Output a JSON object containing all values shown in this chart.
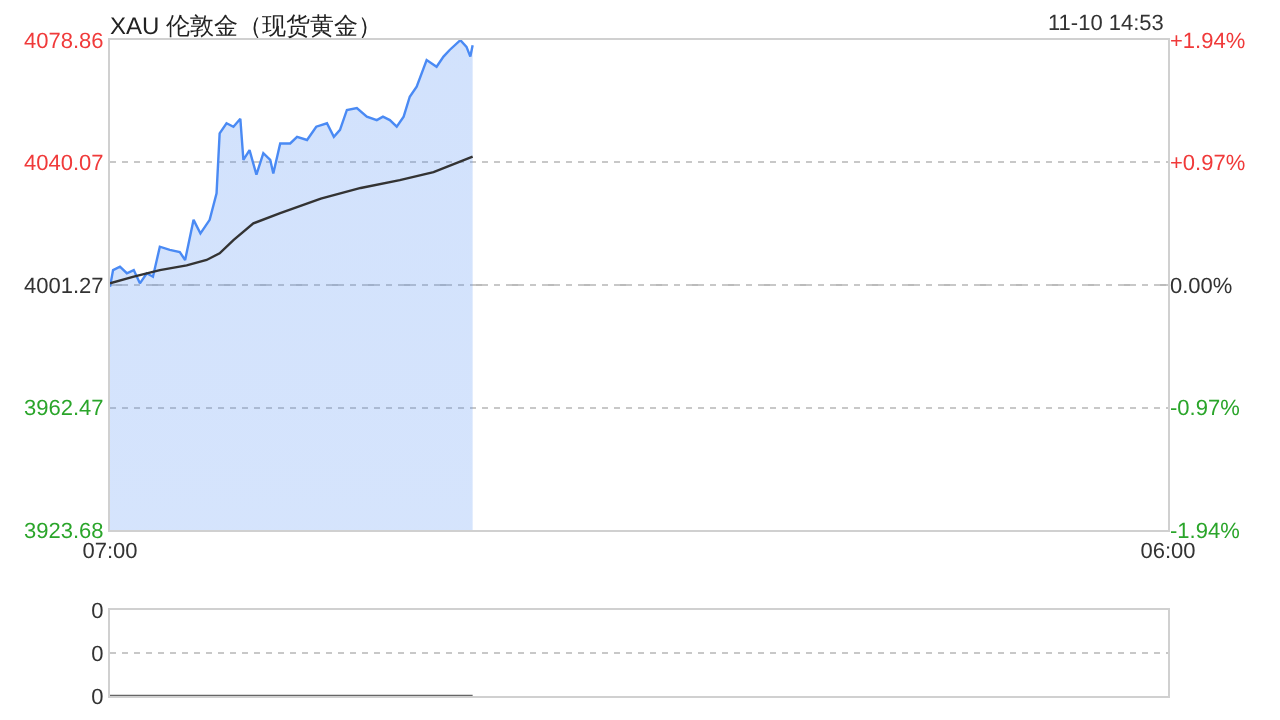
{
  "chart_data": [
    {
      "type": "line",
      "title": "XAU 伦敦金（现货黄金）",
      "annotations": [
        "11-10 14:53"
      ],
      "xlim": [
        "--11-10T07:00",
        "--11-11T06:00"
      ],
      "xticks": [
        {
          "value": "--11-10T07:00",
          "label": "07:00"
        },
        {
          "value": "--11-11T06:00",
          "label": "06:00"
        }
      ],
      "ylim": [
        3923.68,
        4078.86
      ],
      "yticks": [
        3923.68,
        3962.47,
        4001.27,
        4040.07,
        4078.86
      ],
      "y2lim": [
        -1.94,
        1.94
      ],
      "y2ticks": [
        {
          "value": -1.94,
          "label": "-1.94%"
        },
        {
          "value": -0.97,
          "label": "-0.97%"
        },
        {
          "value": 0,
          "label": "0.00%"
        },
        {
          "value": 0.97,
          "label": "+0.97%"
        },
        {
          "value": 1.94,
          "label": "+1.94%"
        }
      ],
      "grid": "y",
      "ref_lines": [
        {
          "axis": "y",
          "value": 4001.27,
          "line_style": "dashed",
          "color": "#bbbbbb"
        }
      ],
      "series": [
        {
          "type": "area",
          "color": "#4a8af4",
          "x": [
            "--11-10T07:00",
            "--11-10T07:04",
            "--11-10T07:13",
            "--11-10T07:22",
            "--11-10T07:31",
            "--11-10T07:39",
            "--11-10T07:48",
            "--11-10T07:56",
            "--11-10T08:05",
            "--11-10T08:18",
            "--11-10T08:31",
            "--11-10T08:38",
            "--11-10T08:49",
            "--11-10T08:58",
            "--11-10T09:10",
            "--11-10T09:19",
            "--11-10T09:23",
            "--11-10T09:32",
            "--11-10T09:41",
            "--11-10T09:50",
            "--11-10T09:54",
            "--11-10T10:02",
            "--11-10T10:11",
            "--11-10T10:20",
            "--11-10T10:29",
            "--11-10T10:33",
            "--11-10T10:42",
            "--11-10T10:55",
            "--11-10T11:04",
            "--11-10T11:17",
            "--11-10T11:29",
            "--11-10T11:43",
            "--11-10T11:52",
            "--11-10T12:00",
            "--11-10T12:09",
            "--11-10T12:22",
            "--11-10T12:35",
            "--11-10T12:48",
            "--11-10T12:56",
            "--11-10T13:05",
            "--11-10T13:14",
            "--11-10T13:23",
            "--11-10T13:31",
            "--11-10T13:40",
            "--11-10T13:53",
            "--11-10T14:06",
            "--11-10T14:15",
            "--11-10T14:23",
            "--11-10T14:37",
            "--11-10T14:45",
            "--11-10T14:50",
            "--11-10T14:53"
          ],
          "values": [
            4000.7,
            4006.0,
            4007.1,
            4005.0,
            4006.0,
            4001.8,
            4005.0,
            4003.9,
            4013.4,
            4012.4,
            4011.7,
            4009.2,
            4021.9,
            4017.6,
            4021.9,
            4030.3,
            4049.3,
            4052.5,
            4051.4,
            4053.9,
            4040.9,
            4044.0,
            4036.2,
            4043.0,
            4040.9,
            4036.6,
            4046.1,
            4046.1,
            4048.2,
            4047.2,
            4051.4,
            4052.5,
            4048.2,
            4050.4,
            4056.7,
            4057.3,
            4054.6,
            4053.5,
            4054.6,
            4053.5,
            4051.4,
            4054.6,
            4060.9,
            4064.1,
            4072.5,
            4070.4,
            4073.6,
            4075.7,
            4078.8,
            4076.7,
            4073.6,
            4077.2
          ]
        },
        {
          "color": "#333333",
          "x": [
            "--11-10T07:00",
            "--11-10T07:31",
            "--11-10T08:05",
            "--11-10T08:40",
            "--11-10T09:06",
            "--11-10T09:23",
            "--11-10T09:41",
            "--11-10T10:07",
            "--11-10T10:42",
            "--11-10T11:35",
            "--11-10T12:27",
            "--11-10T13:18",
            "--11-10T14:02",
            "--11-10T14:53"
          ],
          "values": [
            4001.8,
            4003.9,
            4006.0,
            4007.5,
            4009.2,
            4011.3,
            4015.5,
            4020.8,
            4024.0,
            4028.6,
            4032.0,
            4034.5,
            4037.0,
            4041.9
          ]
        }
      ]
    },
    {
      "type": "line",
      "xlim": [
        "--11-10T07:00",
        "--11-11T06:00"
      ],
      "ylim": [
        0,
        0.4
      ],
      "yticks": [
        {
          "value": 0,
          "label": "0"
        },
        {
          "value": 0.2,
          "label": "0"
        },
        {
          "value": 0.4,
          "label": "0"
        }
      ],
      "grid": "y",
      "tick_labels": "y",
      "series": [
        {
          "color": "#666666",
          "x": [
            "--11-10T07:00",
            "--11-10T14:53"
          ],
          "values": [
            0,
            0
          ]
        }
      ]
    }
  ]
}
